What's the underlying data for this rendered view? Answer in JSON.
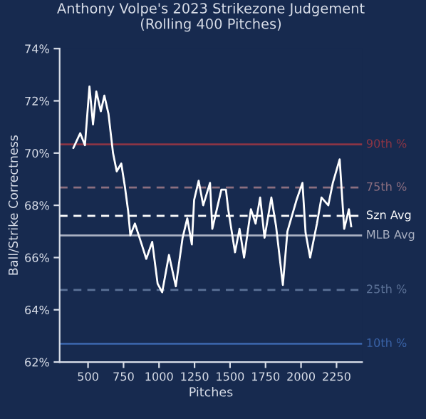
{
  "chart_data": {
    "type": "line",
    "title": "Anthony Volpe's 2023 Strikezone Judgement\n(Rolling 400 Pitches)",
    "xlabel": "Pitches",
    "ylabel": "Ball/Strike Correctness",
    "series": [
      {
        "color": "#ffffff",
        "x": [
          397,
          445,
          478,
          510,
          535,
          558,
          590,
          615,
          644,
          676,
          702,
          734,
          760,
          782,
          798,
          830,
          878,
          910,
          952,
          990,
          1022,
          1070,
          1118,
          1166,
          1199,
          1231,
          1247,
          1279,
          1311,
          1359,
          1375,
          1407,
          1439,
          1471,
          1487,
          1535,
          1567,
          1599,
          1647,
          1680,
          1712,
          1743,
          1791,
          1824,
          1872,
          1904,
          1968,
          2010,
          2032,
          2064,
          2112,
          2144,
          2192,
          2224,
          2272,
          2304,
          2337,
          2353
        ],
        "values": [
          70.2,
          70.76,
          70.3,
          72.55,
          71.1,
          72.36,
          71.6,
          72.2,
          71.5,
          70.0,
          69.3,
          69.6,
          68.7,
          67.8,
          66.85,
          67.3,
          66.5,
          65.95,
          66.6,
          65.0,
          64.67,
          66.1,
          64.9,
          66.76,
          67.5,
          66.5,
          68.2,
          68.94,
          68.0,
          68.86,
          67.1,
          67.85,
          68.6,
          68.6,
          67.85,
          66.2,
          67.1,
          66.0,
          67.85,
          67.3,
          68.3,
          66.76,
          68.3,
          67.2,
          64.95,
          67.0,
          68.2,
          68.86,
          66.95,
          66.0,
          67.3,
          68.3,
          68.0,
          68.86,
          69.76,
          67.1,
          67.85,
          67.2
        ]
      }
    ],
    "xlim": [
      300,
      2430
    ],
    "ylim": [
      62,
      74
    ],
    "xticks": [
      500,
      750,
      1000,
      1250,
      1500,
      1750,
      2000,
      2250
    ],
    "yticks": [
      {
        "value": 62,
        "label": "62%"
      },
      {
        "value": 64,
        "label": "64%"
      },
      {
        "value": 66,
        "label": "66%"
      },
      {
        "value": 68,
        "label": "68%"
      },
      {
        "value": 70,
        "label": "70%"
      },
      {
        "value": 72,
        "label": "72%"
      },
      {
        "value": 74,
        "label": "74%"
      }
    ],
    "ref_lines": [
      {
        "axis": "y",
        "value": 70.33,
        "label": "90th %",
        "color": "#8b3545",
        "line_style": "solid"
      },
      {
        "axis": "y",
        "value": 68.68,
        "label": "75th %",
        "color": "#8c6f80",
        "line_style": "dashed"
      },
      {
        "axis": "y",
        "value": 67.6,
        "label": "Szn Avg",
        "color": "#ffffff",
        "line_style": "dashed"
      },
      {
        "axis": "y",
        "value": 66.85,
        "label": "MLB Avg",
        "color": "#a9b0c2",
        "line_style": "solid"
      },
      {
        "axis": "y",
        "value": 64.76,
        "label": "25th %",
        "color": "#5b7196",
        "line_style": "dashed"
      },
      {
        "axis": "y",
        "value": 62.7,
        "label": "10th %",
        "color": "#3a63a8",
        "line_style": "solid"
      }
    ],
    "grid": false,
    "legend": false
  }
}
